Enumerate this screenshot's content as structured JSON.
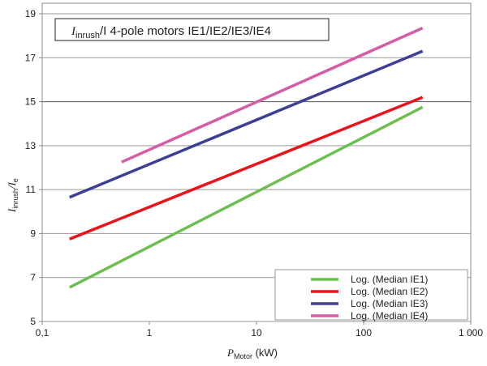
{
  "chart_data": {
    "type": "line",
    "title_main": "I",
    "title_sub": "inrush",
    "title_rest": "/I 4-pole motors IE1/IE2/IE3/IE4",
    "xlabel_main": "P",
    "xlabel_sub": "Motor",
    "xlabel_unit": " (kW)",
    "ylabel_main": "I",
    "ylabel_sub": "inrush",
    "ylabel_rest": "/I",
    "ylabel_sub2": "e",
    "xscale": "log",
    "xlim": [
      0.1,
      1000
    ],
    "ylim": [
      5,
      19
    ],
    "xticks": [
      0.1,
      1,
      10,
      100,
      1000
    ],
    "xtick_labels": [
      "0,1",
      "1",
      "10",
      "100",
      "1 000"
    ],
    "yticks": [
      5,
      7,
      9,
      11,
      13,
      15,
      17,
      19
    ],
    "ytick_labels": [
      "5",
      "7",
      "9",
      "11",
      "13",
      "15",
      "17",
      "19"
    ],
    "grid": "horizontal",
    "legend_position": "bottom-right",
    "series": [
      {
        "name": "Log. (Median IE1)",
        "color": "#6cbf4f",
        "x": [
          0.18,
          355
        ],
        "y": [
          6.55,
          14.75
        ]
      },
      {
        "name": "Log. (Median IE2)",
        "color": "#e8141b",
        "x": [
          0.18,
          355
        ],
        "y": [
          8.75,
          15.2
        ]
      },
      {
        "name": "Log. (Median IE3)",
        "color": "#3c3f93",
        "x": [
          0.18,
          355
        ],
        "y": [
          10.65,
          17.3
        ]
      },
      {
        "name": "Log. (Median IE4)",
        "color": "#d55ca6",
        "x": [
          0.55,
          355
        ],
        "y": [
          12.25,
          18.35
        ]
      }
    ]
  }
}
